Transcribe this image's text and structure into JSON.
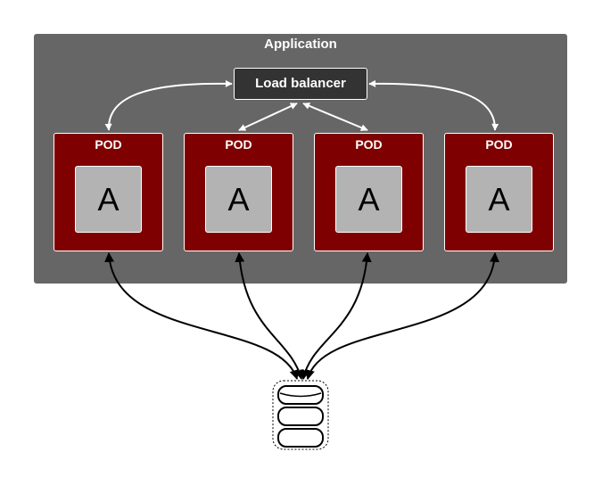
{
  "application": {
    "title": "Application"
  },
  "load_balancer": {
    "label": "Load balancer"
  },
  "pods": [
    {
      "title": "POD",
      "app_label": "A"
    },
    {
      "title": "POD",
      "app_label": "A"
    },
    {
      "title": "POD",
      "app_label": "A"
    },
    {
      "title": "POD",
      "app_label": "A"
    }
  ],
  "colors": {
    "application_bg": "#666666",
    "pod_bg": "#7f0000",
    "app_bg": "#b3b3b3",
    "load_balancer_bg": "#333333",
    "arrow_white": "#ffffff",
    "arrow_black": "#000000"
  },
  "database": {
    "icon": "database-icon"
  }
}
